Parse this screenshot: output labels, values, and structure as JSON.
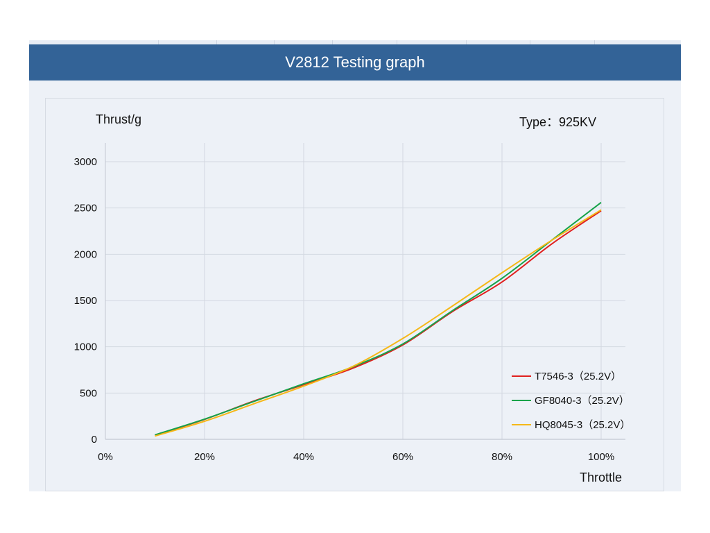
{
  "header": {
    "title": "V2812 Testing graph"
  },
  "colors": {
    "banner": "#336397",
    "background": "#edf1f7",
    "grid": "#d3d8e1"
  },
  "chart_data": {
    "type": "line",
    "title": "V2812 Testing graph",
    "subtitle": "Type：925KV",
    "xlabel": "Throttle",
    "ylabel": "Thrust/g",
    "x_unit": "%",
    "xlim": [
      0,
      100
    ],
    "ylim": [
      0,
      3000
    ],
    "x_ticks": [
      "0%",
      "20%",
      "40%",
      "60%",
      "80%",
      "100%"
    ],
    "x_tick_values": [
      0,
      20,
      40,
      60,
      80,
      100
    ],
    "y_ticks": [
      "0",
      "500",
      "1000",
      "1500",
      "2000",
      "2500",
      "3000"
    ],
    "y_tick_values": [
      0,
      500,
      1000,
      1500,
      2000,
      2500,
      3000
    ],
    "grid": true,
    "legend_position": "bottom-right",
    "x": [
      10,
      20,
      30,
      40,
      50,
      60,
      70,
      80,
      90,
      100
    ],
    "series": [
      {
        "name": "T7546-3（25.2V）",
        "color": "#e0201e",
        "values": [
          45,
          215,
          415,
          590,
          770,
          1020,
          1380,
          1700,
          2110,
          2470
        ]
      },
      {
        "name": "GF8040-3（25.2V）",
        "color": "#17a34a",
        "values": [
          48,
          218,
          410,
          600,
          785,
          1030,
          1390,
          1740,
          2150,
          2560
        ]
      },
      {
        "name": "HQ8045-3（25.2V）",
        "color": "#f5b818",
        "values": [
          35,
          195,
          385,
          575,
          790,
          1090,
          1440,
          1800,
          2150,
          2480
        ]
      }
    ]
  }
}
